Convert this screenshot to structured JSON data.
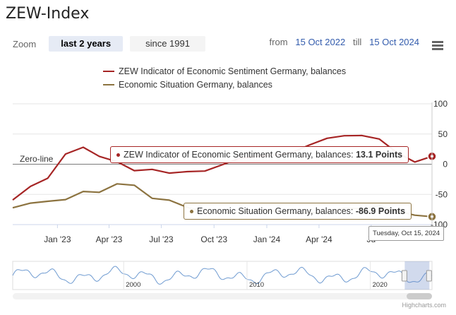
{
  "title": "ZEW-Index",
  "zoom": {
    "label": "Zoom",
    "buttons": [
      {
        "label": "last 2 years",
        "active": true
      },
      {
        "label": "since 1991",
        "active": false
      }
    ]
  },
  "range": {
    "from_label": "from",
    "from_value": "15 Oct 2022",
    "till_label": "till",
    "till_value": "15 Oct 2024"
  },
  "legend": [
    {
      "name": "ZEW Indicator of Economic Sentiment Germany, balances",
      "color": "#a62525"
    },
    {
      "name": "Economic Situation Germany, balances",
      "color": "#8c7340"
    }
  ],
  "zero_line_label": "Zero-line",
  "tooltips": {
    "sentiment": {
      "text": "ZEW Indicator of Economic Sentiment Germany, balances: ",
      "value": "13.1 Points"
    },
    "situation": {
      "text": "Economic Situation Germany, balances: ",
      "value": "-86.9 Points"
    }
  },
  "x_tooltip": "Tuesday, Oct 15, 2024",
  "credits": "Highcharts.com",
  "chart_data": {
    "type": "line",
    "x_ticks": [
      "Jan '23",
      "Apr '23",
      "Jul '23",
      "Oct '23",
      "Jan '24",
      "Apr '24",
      "Ju"
    ],
    "y_ticks": [
      "100",
      "50",
      "0",
      "-50",
      "-100"
    ],
    "ylim": [
      -100,
      100
    ],
    "xlim": [
      "2022-10-15",
      "2024-10-15"
    ],
    "series": [
      {
        "name": "ZEW Indicator of Economic Sentiment Germany, balances",
        "color": "#a62525",
        "points": [
          [
            "2022-10-15",
            -59.2
          ],
          [
            "2022-11-15",
            -36.7
          ],
          [
            "2022-12-15",
            -23.3
          ],
          [
            "2023-01-15",
            16.9
          ],
          [
            "2023-02-15",
            28.1
          ],
          [
            "2023-03-15",
            13.0
          ],
          [
            "2023-04-15",
            4.1
          ],
          [
            "2023-05-15",
            -10.7
          ],
          [
            "2023-06-15",
            -8.5
          ],
          [
            "2023-07-15",
            -14.7
          ],
          [
            "2023-08-15",
            -12.3
          ],
          [
            "2023-09-15",
            -11.4
          ],
          [
            "2023-10-15",
            -1.1
          ],
          [
            "2023-11-15",
            9.8
          ],
          [
            "2023-12-15",
            12.8
          ],
          [
            "2024-01-15",
            15.2
          ],
          [
            "2024-02-15",
            19.9
          ],
          [
            "2024-03-15",
            31.7
          ],
          [
            "2024-04-15",
            42.9
          ],
          [
            "2024-05-15",
            47.1
          ],
          [
            "2024-06-15",
            47.5
          ],
          [
            "2024-07-15",
            41.8
          ],
          [
            "2024-08-15",
            19.2
          ],
          [
            "2024-09-15",
            3.6
          ],
          [
            "2024-10-15",
            13.1
          ]
        ]
      },
      {
        "name": "Economic Situation Germany, balances",
        "color": "#8c7340",
        "points": [
          [
            "2022-10-15",
            -72.2
          ],
          [
            "2022-11-15",
            -64.5
          ],
          [
            "2022-12-15",
            -61.4
          ],
          [
            "2023-01-15",
            -58.6
          ],
          [
            "2023-02-15",
            -45.1
          ],
          [
            "2023-03-15",
            -46.5
          ],
          [
            "2023-04-15",
            -32.5
          ],
          [
            "2023-05-15",
            -34.8
          ],
          [
            "2023-06-15",
            -56.5
          ],
          [
            "2023-07-15",
            -59.5
          ],
          [
            "2023-08-15",
            -71.3
          ],
          [
            "2023-09-15",
            -79.4
          ],
          [
            "2023-10-15",
            -79.9
          ],
          [
            "2023-11-15",
            -79.8
          ],
          [
            "2023-12-15",
            -77.1
          ],
          [
            "2024-01-15",
            -77.3
          ],
          [
            "2024-02-15",
            -80.5
          ],
          [
            "2024-03-15",
            -80.5
          ],
          [
            "2024-04-15",
            -79.2
          ],
          [
            "2024-05-15",
            -72.3
          ],
          [
            "2024-06-15",
            -73.8
          ],
          [
            "2024-07-15",
            -68.9
          ],
          [
            "2024-08-15",
            -77.3
          ],
          [
            "2024-09-15",
            -84.5
          ],
          [
            "2024-10-15",
            -86.9
          ]
        ]
      }
    ],
    "navigator": {
      "x_ticks": [
        "2000",
        "2010",
        "2020"
      ],
      "xlim": [
        1991,
        2025
      ],
      "selected_range": [
        2022.79,
        2024.79
      ]
    }
  }
}
